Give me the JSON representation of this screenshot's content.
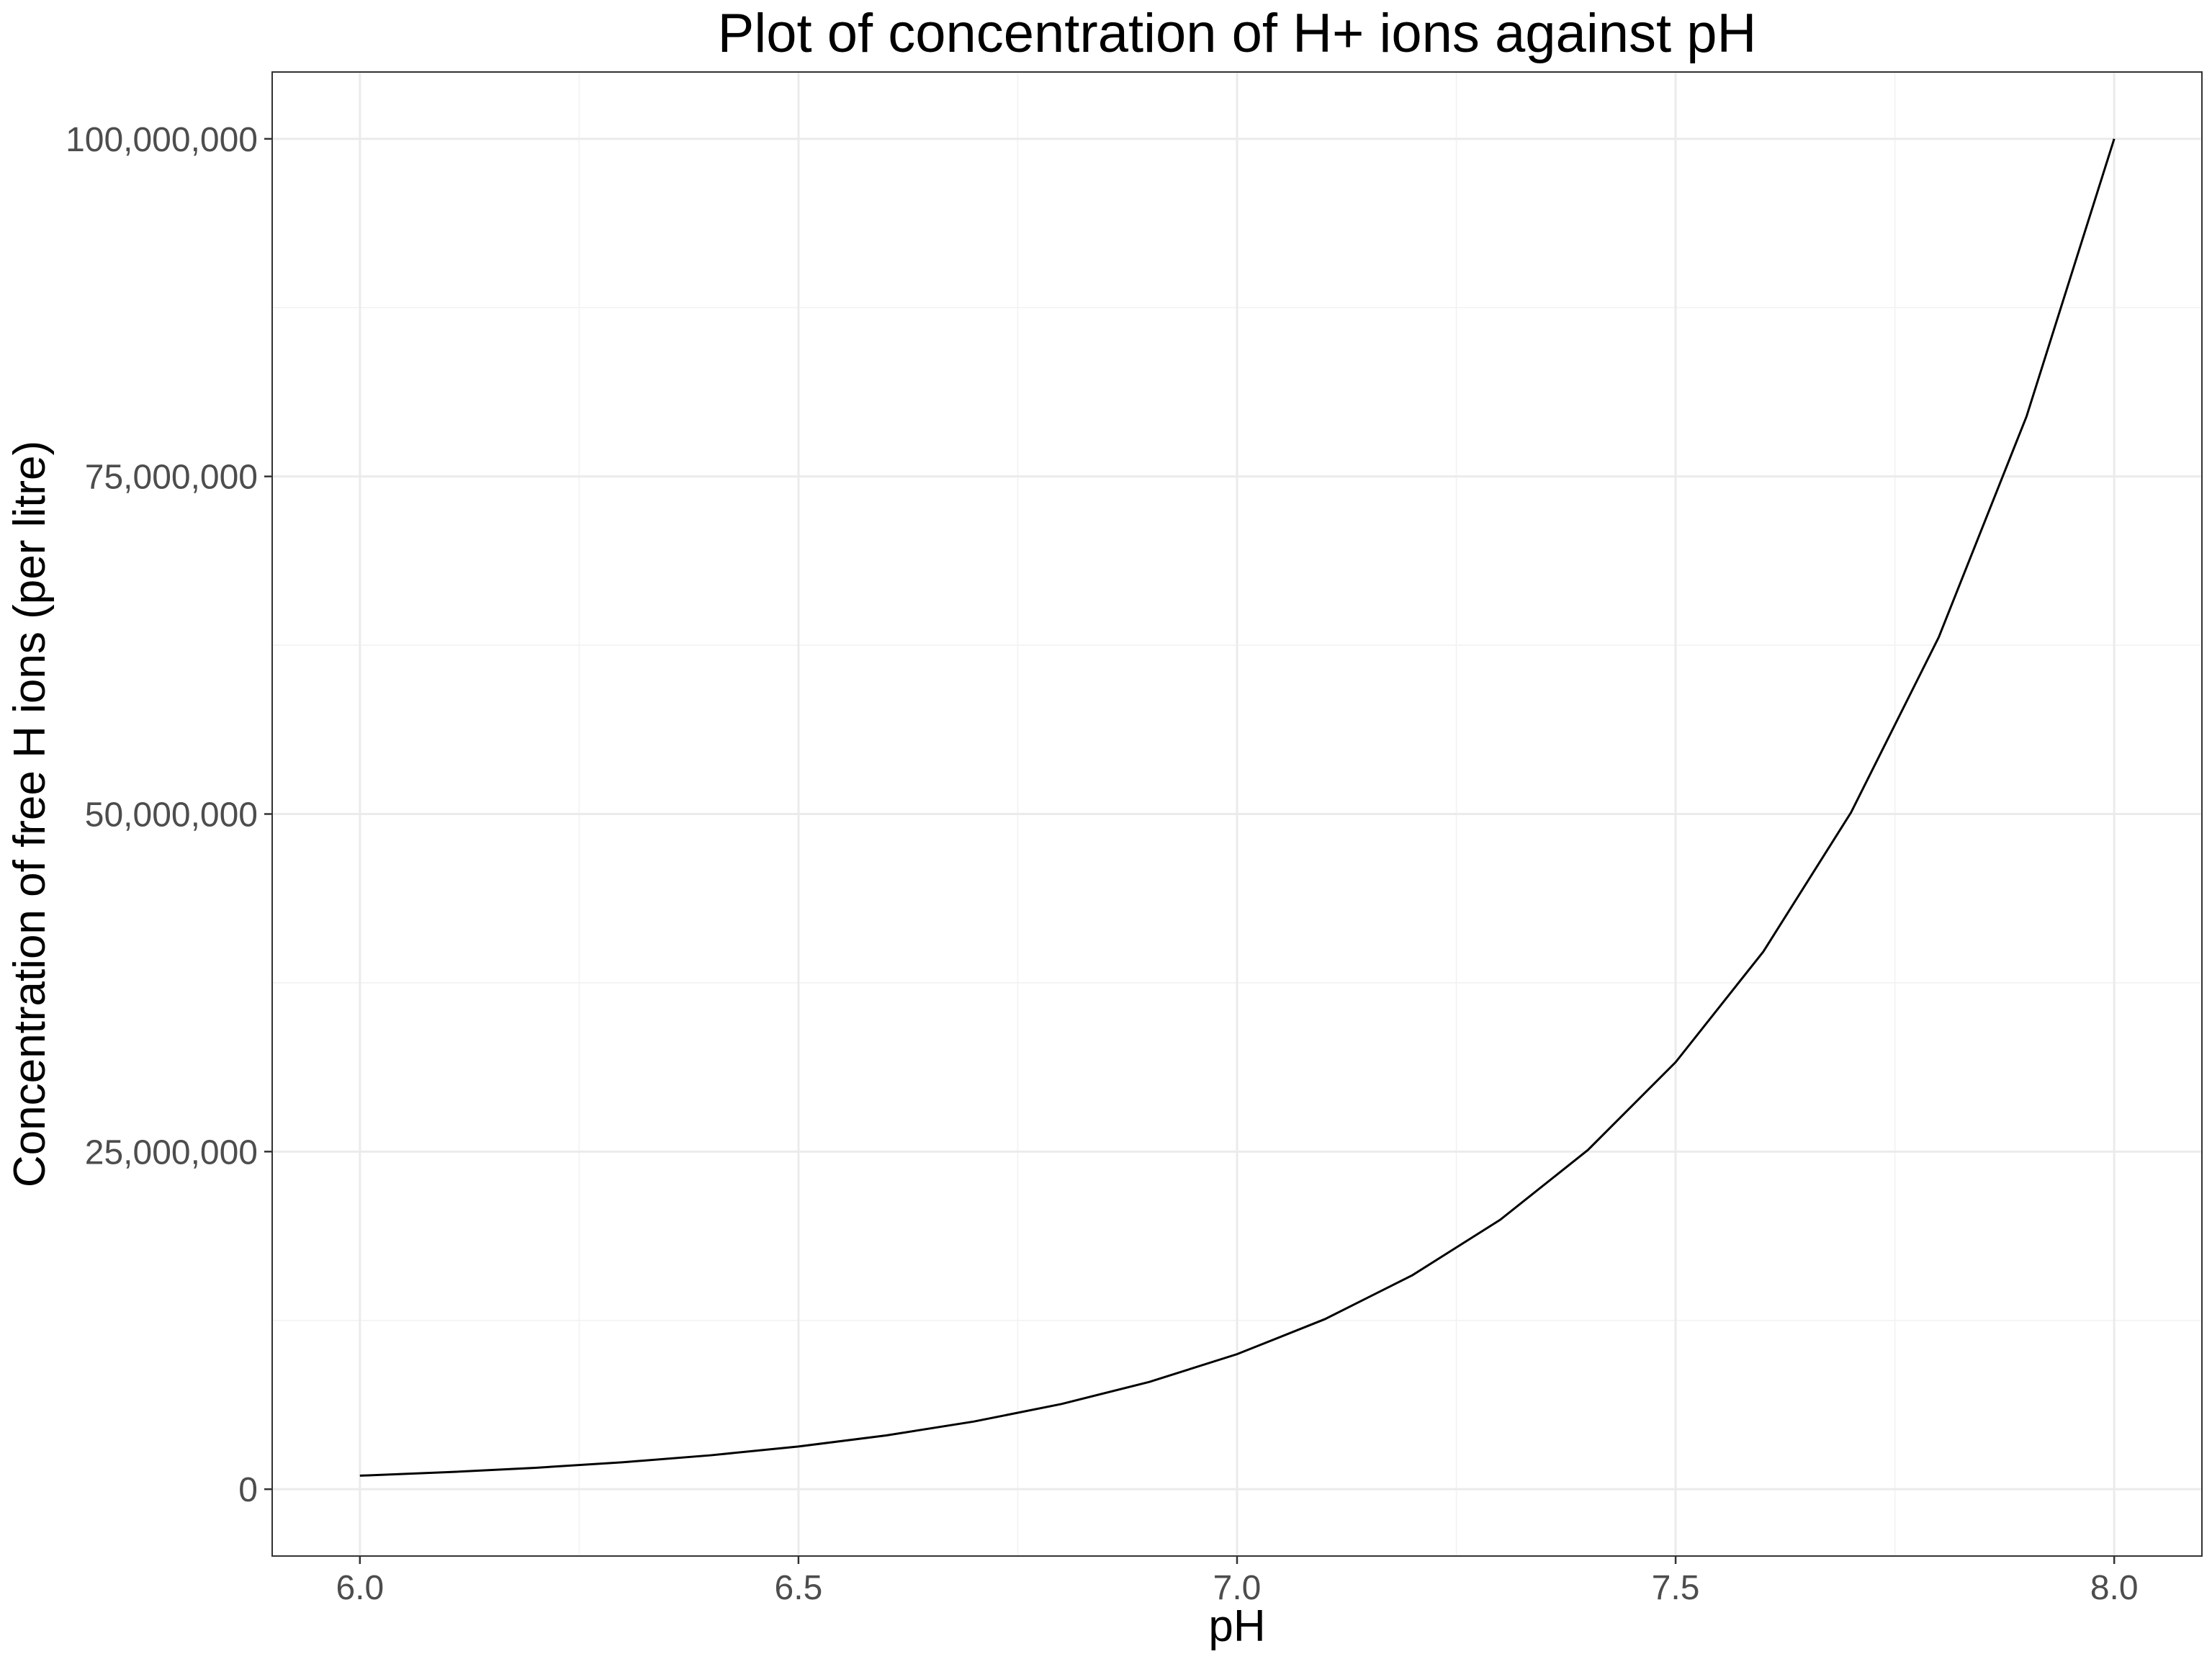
{
  "chart_data": {
    "type": "line",
    "title": "Plot of concentration of H+ ions against pH",
    "xlabel": "pH",
    "ylabel": "Concentration of free H ions (per litre)",
    "xlim": [
      5.9,
      8.1
    ],
    "ylim": [
      -4950000,
      104950000
    ],
    "x_ticks": [
      {
        "value": 6.0,
        "label": "6.0"
      },
      {
        "value": 6.5,
        "label": "6.5"
      },
      {
        "value": 7.0,
        "label": "7.0"
      },
      {
        "value": 7.5,
        "label": "7.5"
      },
      {
        "value": 8.0,
        "label": "8.0"
      }
    ],
    "y_ticks": [
      {
        "value": 0,
        "label": "0"
      },
      {
        "value": 25000000,
        "label": "25,000,000"
      },
      {
        "value": 50000000,
        "label": "50,000,000"
      },
      {
        "value": 75000000,
        "label": "75,000,000"
      },
      {
        "value": 100000000,
        "label": "100,000,000"
      }
    ],
    "grid": true,
    "legend": "none",
    "series": [
      {
        "color": "#000000",
        "x": [
          6.0,
          6.1,
          6.2,
          6.3,
          6.4,
          6.5,
          6.6,
          6.7,
          6.8,
          6.9,
          7.0,
          7.1,
          7.2,
          7.3,
          7.4,
          7.5,
          7.6,
          7.7,
          7.8,
          7.9,
          8.0
        ],
        "y": [
          1000000,
          1258925,
          1584893,
          1995262,
          2511886,
          3162278,
          3981072,
          5011872,
          6309573,
          7943282,
          10000000,
          12589254,
          15848932,
          19952623,
          25118864,
          31622777,
          39810717,
          50118723,
          63095734,
          79432823,
          100000000
        ]
      }
    ]
  }
}
